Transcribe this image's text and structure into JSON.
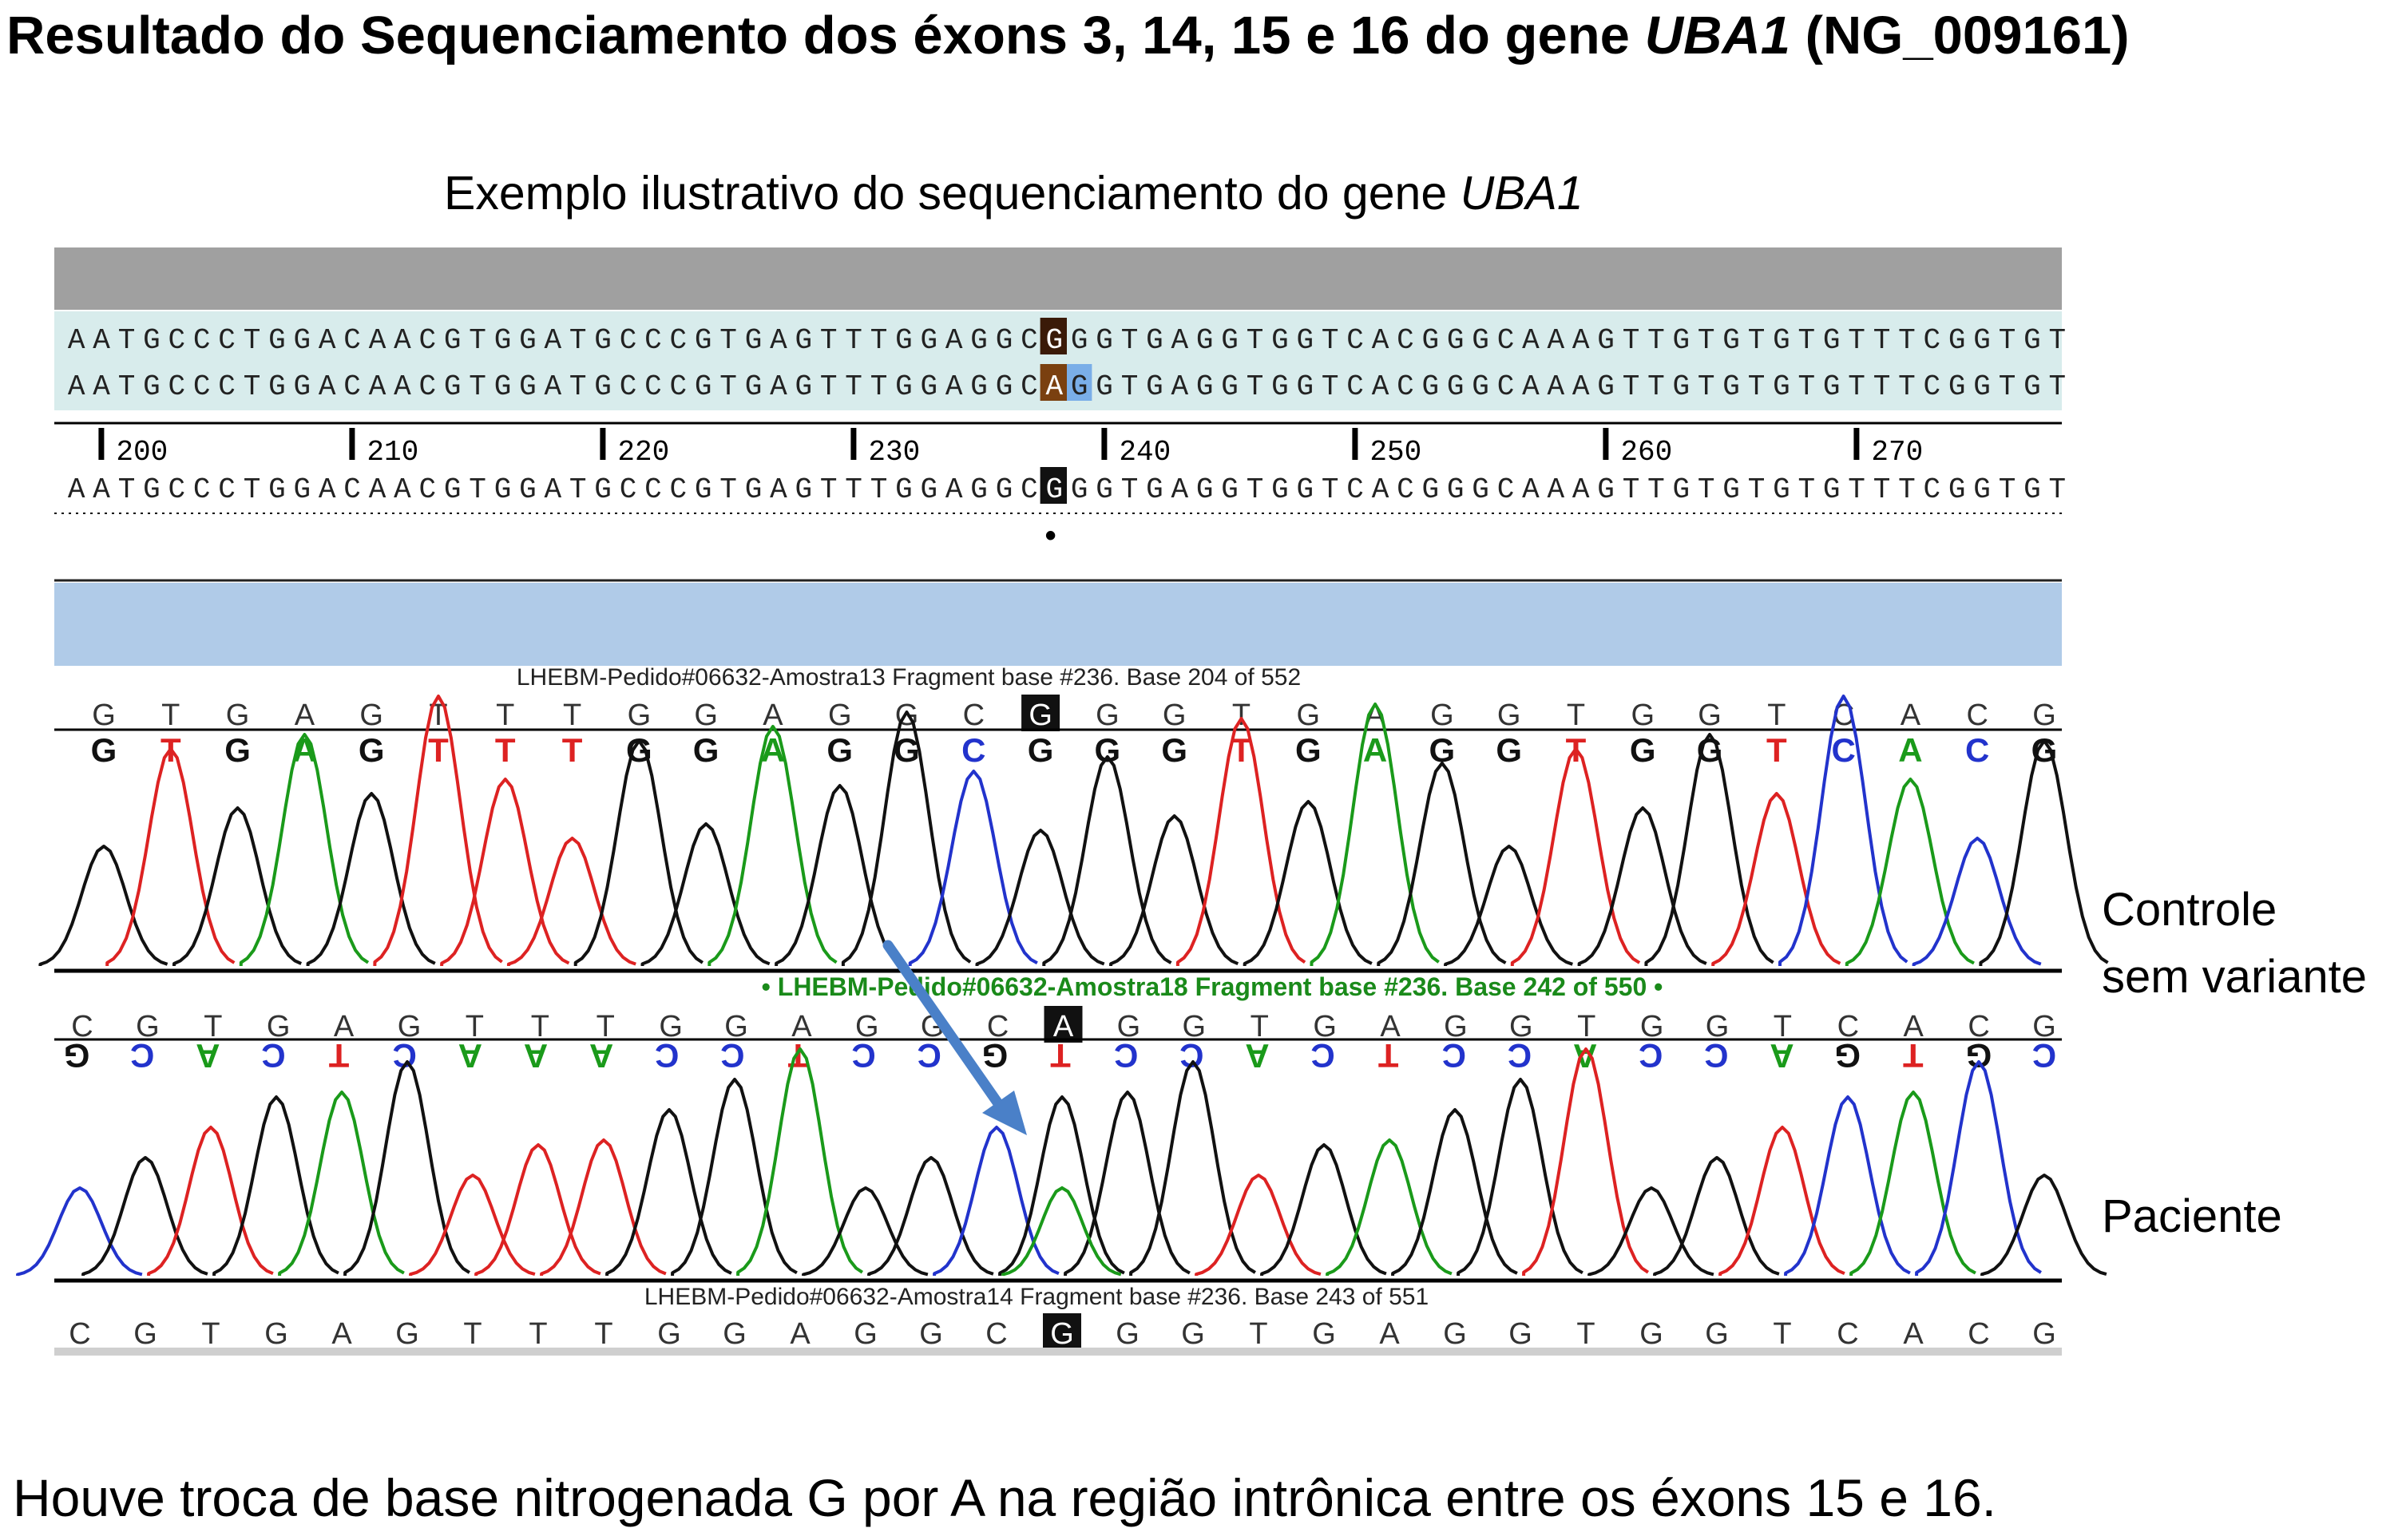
{
  "title": {
    "prefix": "Resultado do Sequenciamento dos éxons 3, 14, 15 e 16 do gene ",
    "gene": "UBA1",
    "suffix": " (NG_009161)"
  },
  "subtitle": {
    "prefix": "Exemplo ilustrativo do sequenciamento do gene ",
    "gene": "UBA1"
  },
  "alignment": {
    "seq_ref": "AATGCCCTGGACAACGTGGATGCCCGTGAGTTTGGAGGCGGGTGAGGTGGTCACGGGCAAAGTTGTGTGTGTTTCGGTGT",
    "seq_var": "AATGCCCTGGACAACGTGGATGCCCGTGAGTTTGGAGGCAGGTGAGGTGGTCACGGGCAAAGTTGTGTGTGTTTCGGTGT",
    "seq_consensus": "AATGCCCTGGACAACGTGGATGCCCGTGAGTTTGGAGGCGGGTGAGGTGGTCACGGGCAAAGTTGTGTGTGTTTCGGTGT",
    "variant_index": 39,
    "ruler": [
      "200",
      "210",
      "220",
      "230",
      "240",
      "250",
      "260",
      "270"
    ],
    "consensus_dot": "•"
  },
  "chromatograms": [
    {
      "id": "controle",
      "header": "LHEBM-Pedido#06632-Amostra13 Fragment base #236. Base 204 of 552",
      "ref_row": [
        "G",
        "T",
        "G",
        "A",
        "G",
        "T",
        "T",
        "T",
        "G",
        "G",
        "A",
        "G",
        "G",
        "C",
        "G",
        "G",
        "G",
        "T",
        "G",
        "A",
        "G",
        "G",
        "T",
        "G",
        "G",
        "T",
        "C",
        "A",
        "C",
        "G"
      ],
      "called_row": [
        "G",
        "T",
        "G",
        "A",
        "G",
        "T",
        "T",
        "T",
        "G",
        "G",
        "A",
        "G",
        "G",
        "C",
        "G",
        "G",
        "G",
        "T",
        "G",
        "A",
        "G",
        "G",
        "T",
        "G",
        "G",
        "T",
        "C",
        "A",
        "C",
        "G"
      ],
      "highlight_index": 14,
      "label_line1": "Controle",
      "label_line2": "sem variante"
    },
    {
      "id": "paciente",
      "header": "• LHEBM-Pedido#06632-Amostra18 Fragment base #236. Base 242 of 550 •",
      "ref_row": [
        "C",
        "G",
        "T",
        "G",
        "A",
        "G",
        "T",
        "T",
        "T",
        "G",
        "G",
        "A",
        "G",
        "G",
        "C",
        "A",
        "G",
        "G",
        "T",
        "G",
        "A",
        "G",
        "G",
        "T",
        "G",
        "G",
        "T",
        "C",
        "A",
        "C",
        "G"
      ],
      "called_row": [
        "G",
        "C",
        "A",
        "C",
        "T",
        "C",
        "A",
        "A",
        "A",
        "C",
        "C",
        "T",
        "C",
        "C",
        "G",
        "T",
        "C",
        "C",
        "A",
        "C",
        "T",
        "C",
        "C",
        "A",
        "C",
        "C",
        "A",
        "G",
        "T",
        "G",
        "C"
      ],
      "highlight_index": 15,
      "label": "Paciente"
    }
  ],
  "bottom_track": {
    "header": "LHEBM-Pedido#06632-Amostra14 Fragment base #236. Base 243 of 551",
    "row": [
      "C",
      "G",
      "T",
      "G",
      "A",
      "G",
      "T",
      "T",
      "T",
      "G",
      "G",
      "A",
      "G",
      "G",
      "C",
      "G",
      "G",
      "G",
      "T",
      "G",
      "A",
      "G",
      "G",
      "T",
      "G",
      "G",
      "T",
      "C",
      "A",
      "C",
      "G"
    ],
    "highlight_index": 15
  },
  "footer": "Houve troca de base nitrogenada G por A na região intrônica entre os éxons 15 e 16.",
  "colors": {
    "A": "#1a9a1a",
    "C": "#2233cc",
    "G": "#111111",
    "T": "#dd2222",
    "header_bar": "#a0a0a0",
    "seq_bg": "#d8ecec",
    "chromatogram_bar": "#b0cbe8",
    "arrow": "#4a80c8",
    "variant_bg": "#3a1a08",
    "variant_var_bg": "#7a4010",
    "adjacent_highlight": "#7aaee8",
    "sample_header_green": "#1a8a1a"
  }
}
